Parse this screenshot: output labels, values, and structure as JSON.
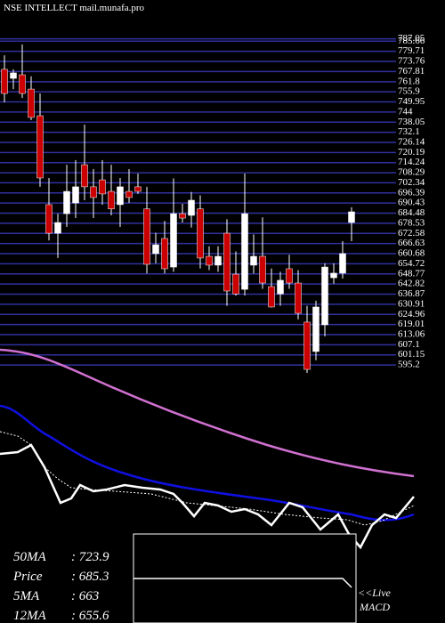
{
  "chart_data": {
    "type": "candlestick",
    "title": "NSE INTELLECT mail.munafa.pro",
    "ylim": [
      590,
      790
    ],
    "yticks": [
      787.05,
      785.66,
      779.71,
      773.76,
      767.81,
      761.8,
      755.9,
      749.95,
      744,
      738.05,
      732.1,
      726.14,
      720.19,
      714.24,
      708.29,
      702.34,
      696.39,
      690.43,
      684.48,
      678.53,
      672.58,
      666.63,
      660.68,
      654.72,
      648.77,
      642.82,
      636.87,
      630.91,
      624.96,
      619.01,
      613.06,
      607.1,
      601.15,
      595.2
    ],
    "grid": true,
    "up_color": "#ffffff",
    "down_color": "#cc0000",
    "open": [
      769.1,
      763.8,
      765.9,
      757.5,
      741.8,
      689.5,
      672.7,
      684.2,
      690.5,
      713,
      700,
      704.1,
      697.3,
      689.5,
      697.3,
      700,
      687,
      660.7,
      669.6,
      652.8,
      684.2,
      683.2,
      687,
      659.1,
      653.9,
      672.7,
      648.6,
      639.7,
      653.9,
      659.1,
      641.3,
      637,
      651.8,
      643.4,
      620.4,
      603.1,
      618.8,
      646.5,
      649.2,
      679
    ],
    "high": [
      777.4,
      769.1,
      783.7,
      765,
      754.9,
      705.2,
      684.2,
      713,
      715.7,
      736.6,
      710.4,
      715.7,
      713,
      705.2,
      710.4,
      707.8,
      700,
      673,
      680,
      705,
      690,
      697,
      695,
      665,
      665,
      681,
      662,
      707.8,
      672,
      682,
      652,
      650,
      660,
      651,
      630,
      633,
      655,
      655,
      668,
      688
    ],
    "low": [
      749.7,
      757.5,
      752.3,
      739.2,
      700,
      668.5,
      658.1,
      676.4,
      681.6,
      692.1,
      681.6,
      689.5,
      683.2,
      676.4,
      690.5,
      695.8,
      649,
      655,
      649,
      650,
      679,
      676,
      652,
      651,
      650,
      630,
      636,
      636,
      649,
      640,
      629,
      630,
      640,
      622,
      590.5,
      598,
      612,
      643,
      646,
      668
    ],
    "close": [
      754.9,
      767,
      754.9,
      740.8,
      705.2,
      672.7,
      679,
      697.3,
      700,
      700,
      693.7,
      695.8,
      687,
      700,
      693.7,
      697.3,
      654.4,
      665.9,
      651.8,
      684.2,
      681.6,
      692.1,
      658.1,
      653.9,
      659.1,
      638.7,
      637,
      684.2,
      659.1,
      643.4,
      629.3,
      645,
      643.4,
      625.6,
      592.6,
      629.3,
      652.8,
      649.2,
      660.7,
      685.3
    ],
    "stats": [
      {
        "name": "50MA",
        "value": 723.9
      },
      {
        "name": "Price",
        "value": 685.3
      },
      {
        "name": "5MA",
        "value": 663
      },
      {
        "name": "12MA",
        "value": 655.6
      }
    ],
    "macd_label": [
      "<<Live",
      "MACD"
    ]
  }
}
